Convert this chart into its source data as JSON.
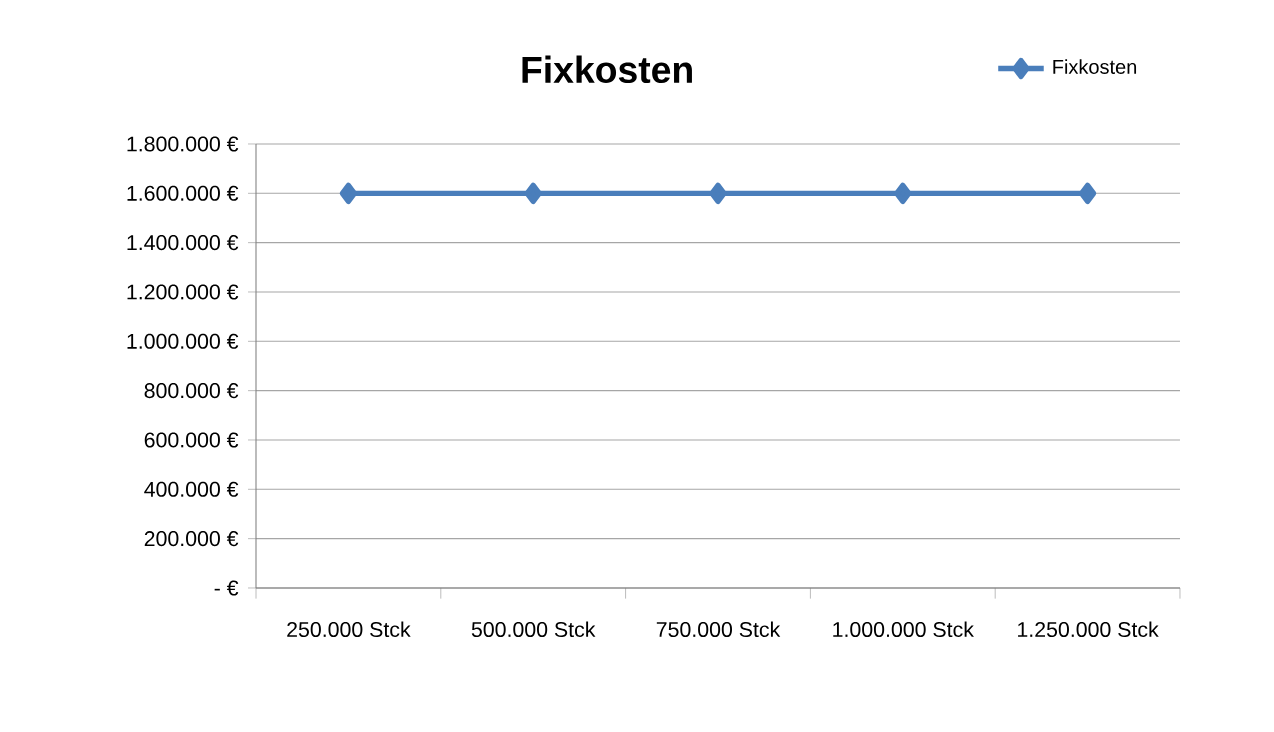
{
  "chart_data": {
    "type": "line",
    "title": "Fixkosten",
    "categories": [
      "250.000 Stck",
      "500.000 Stck",
      "750.000 Stck",
      "1.000.000 Stck",
      "1.250.000 Stck"
    ],
    "series": [
      {
        "name": "Fixkosten",
        "color": "#4a7ebb",
        "values": [
          1600000,
          1600000,
          1600000,
          1600000,
          1600000
        ]
      }
    ],
    "ylim": [
      0,
      1800000
    ],
    "yticks": [
      {
        "value": 0,
        "label": "-   €"
      },
      {
        "value": 200000,
        "label": "200.000 €"
      },
      {
        "value": 400000,
        "label": "400.000 €"
      },
      {
        "value": 600000,
        "label": "600.000 €"
      },
      {
        "value": 800000,
        "label": "800.000 €"
      },
      {
        "value": 1000000,
        "label": "1.000.000 €"
      },
      {
        "value": 1200000,
        "label": "1.200.000 €"
      },
      {
        "value": 1400000,
        "label": "1.400.000 €"
      },
      {
        "value": 1600000,
        "label": "1.600.000 €"
      },
      {
        "value": 1800000,
        "label": "1.800.000 €"
      }
    ],
    "grid": "y",
    "legend": "top right",
    "marker": "diamond",
    "line_style": "solid"
  }
}
